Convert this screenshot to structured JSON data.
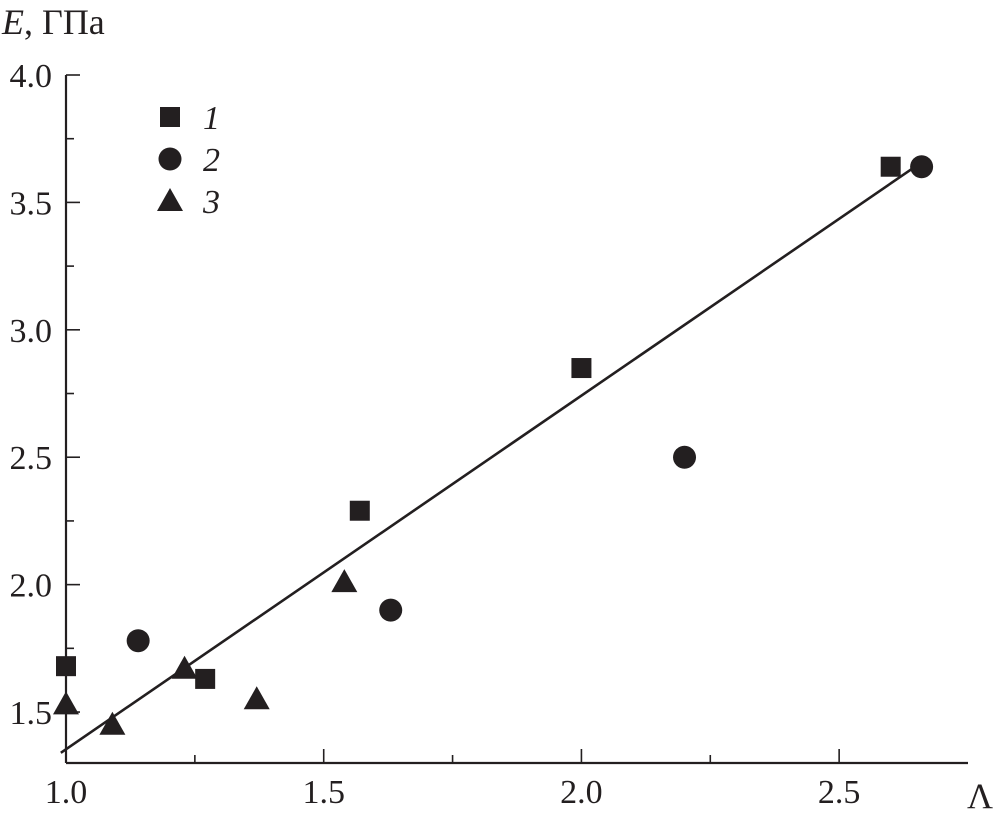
{
  "chart_data": {
    "type": "scatter",
    "title": "",
    "xlabel": "Λ",
    "ylabel_var": "E",
    "ylabel_unit": ", ГПа",
    "xlim": [
      1.0,
      2.75
    ],
    "ylim": [
      1.3,
      4.0
    ],
    "x_major_ticks": [
      1.0,
      1.5,
      2.0,
      2.5
    ],
    "x_tick_labels": [
      "1.0",
      "1.5",
      "2.0",
      "2.5"
    ],
    "x_minor_ticks": [
      1.25,
      1.75,
      2.25
    ],
    "y_major_ticks": [
      1.5,
      2.0,
      2.5,
      3.0,
      3.5,
      4.0
    ],
    "y_tick_labels": [
      "1.5",
      "2.0",
      "2.5",
      "3.0",
      "3.5",
      "4.0"
    ],
    "y_minor_ticks": [
      1.75,
      2.25,
      2.75,
      3.25,
      3.75
    ],
    "grid": false,
    "legend_position": "top-left",
    "series": [
      {
        "name": "1",
        "marker": "square",
        "points": [
          [
            1.0,
            1.68
          ],
          [
            1.27,
            1.63
          ],
          [
            1.57,
            2.29
          ],
          [
            2.0,
            2.85
          ],
          [
            2.6,
            3.64
          ]
        ]
      },
      {
        "name": "2",
        "marker": "circle",
        "points": [
          [
            1.14,
            1.78
          ],
          [
            1.63,
            1.9
          ],
          [
            2.2,
            2.5
          ],
          [
            2.66,
            3.64
          ]
        ]
      },
      {
        "name": "3",
        "marker": "triangle",
        "points": [
          [
            1.0,
            1.53
          ],
          [
            1.09,
            1.45
          ],
          [
            1.23,
            1.67
          ],
          [
            1.37,
            1.55
          ],
          [
            1.54,
            2.01
          ]
        ]
      }
    ],
    "fit_line": {
      "x": [
        0.99,
        2.64
      ],
      "y": [
        1.34,
        3.63
      ]
    },
    "colors": {
      "ink": "#231f20"
    }
  }
}
